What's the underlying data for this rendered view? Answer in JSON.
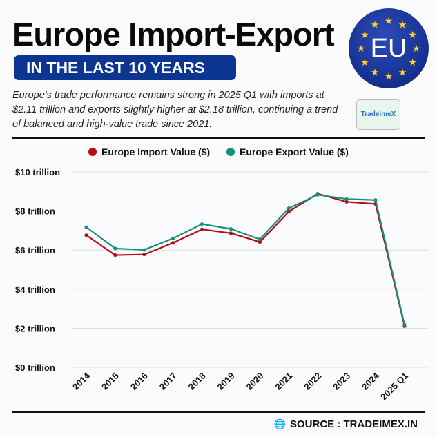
{
  "header": {
    "title": "Europe Import-Export",
    "subtitle": "IN THE LAST 10 YEARS",
    "description": "Europe's trade performance remains strong in 2025 Q1 with imports at $2.11 trillion and exports slightly higher at $2.18 trillion, continuing a trend of balanced and high-value trade since 2021.",
    "eu_badge": "EU",
    "brand_logo": "TradeImeX"
  },
  "footer": {
    "source": "SOURCE : TRADEIMEX.IN",
    "icon": "globe-icon"
  },
  "chart_data": {
    "type": "line",
    "title": "",
    "xlabel": "",
    "ylabel": "",
    "categories": [
      "2014",
      "2015",
      "2016",
      "2017",
      "2018",
      "2019",
      "2020",
      "2021",
      "2022",
      "2023",
      "2024",
      "2025 Q1"
    ],
    "series": [
      {
        "name": "Europe Import Value ($)",
        "color": "#b50d12",
        "values": [
          6.76,
          5.74,
          5.77,
          6.37,
          7.06,
          6.86,
          6.41,
          7.97,
          8.88,
          8.47,
          8.36,
          2.11
        ]
      },
      {
        "name": "Europe Export Value ($)",
        "color": "#14917a",
        "values": [
          7.17,
          6.08,
          6.01,
          6.6,
          7.33,
          7.08,
          6.55,
          8.14,
          8.83,
          8.61,
          8.56,
          2.18
        ]
      }
    ],
    "ylim": [
      0,
      10
    ],
    "yticks": [
      0,
      2,
      4,
      6,
      8,
      10
    ],
    "ytick_labels": [
      "$0 trillion",
      "$2 trillion",
      "$4 trillion",
      "$6 trillion",
      "$8 trillion",
      "$10 trillion"
    ],
    "grid": true,
    "legend_position": "top"
  }
}
